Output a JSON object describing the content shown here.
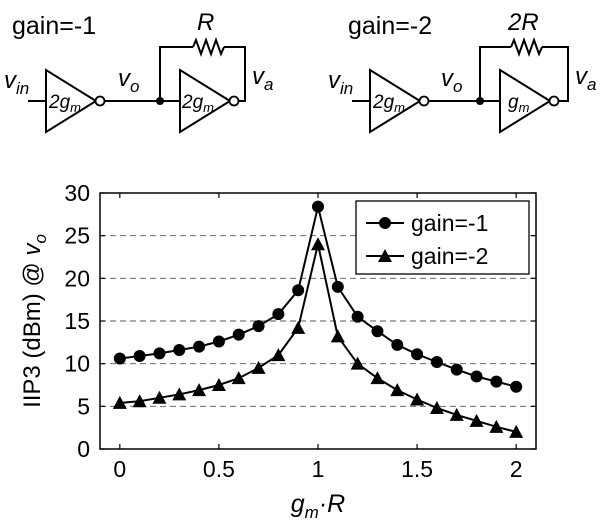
{
  "schematics": {
    "left": {
      "title": "gain=-1",
      "input_label": "v",
      "input_sub": "in",
      "mid_label": "v",
      "mid_sub": "o",
      "out_label": "v",
      "out_sub": "a",
      "feedback_label": "R",
      "amp1_gain": "2g",
      "amp1_sub": "m",
      "amp2_gain": "2g",
      "amp2_sub": "m"
    },
    "right": {
      "title": "gain=-2",
      "input_label": "v",
      "input_sub": "in",
      "mid_label": "v",
      "mid_sub": "o",
      "out_label": "v",
      "out_sub": "a",
      "feedback_label": "2R",
      "amp1_gain": "2g",
      "amp1_sub": "m",
      "amp2_gain": "g",
      "amp2_sub": "m"
    }
  },
  "chart_data": {
    "type": "line",
    "ylabel_prefix": "IIP3 (dBm) @ ",
    "ylabel_var": "v",
    "ylabel_sub": "o",
    "xlabel_var": "g",
    "xlabel_sub": "m",
    "xlabel_suffix": "·R",
    "xlim": [
      -0.1,
      2.1
    ],
    "ylim": [
      0,
      30
    ],
    "xticks": [
      "0",
      "0.5",
      "1",
      "1.5",
      "2"
    ],
    "yticks": [
      "0",
      "5",
      "10",
      "15",
      "20",
      "25",
      "30"
    ],
    "grid": "dashed horizontal",
    "legend_position": "top-right",
    "series": [
      {
        "name": "gain=-1",
        "marker": "circle",
        "x": [
          0,
          0.1,
          0.2,
          0.3,
          0.4,
          0.5,
          0.6,
          0.7,
          0.8,
          0.9,
          1.0,
          1.1,
          1.2,
          1.3,
          1.4,
          1.5,
          1.6,
          1.7,
          1.8,
          1.9,
          2.0
        ],
        "y": [
          10.6,
          10.9,
          11.2,
          11.6,
          12.0,
          12.6,
          13.4,
          14.4,
          15.8,
          18.6,
          28.4,
          19.0,
          15.5,
          13.8,
          12.2,
          11.1,
          10.2,
          9.3,
          8.5,
          7.9,
          7.3
        ]
      },
      {
        "name": "gain=-2",
        "marker": "triangle",
        "x": [
          0,
          0.1,
          0.2,
          0.3,
          0.4,
          0.5,
          0.6,
          0.7,
          0.8,
          0.9,
          1.0,
          1.1,
          1.2,
          1.3,
          1.4,
          1.5,
          1.6,
          1.7,
          1.8,
          1.9,
          2.0
        ],
        "y": [
          5.4,
          5.6,
          6.0,
          6.4,
          6.9,
          7.5,
          8.3,
          9.5,
          11.0,
          14.2,
          24.0,
          13.2,
          10.0,
          8.3,
          6.9,
          5.8,
          4.8,
          4.0,
          3.3,
          2.6,
          2.0
        ]
      }
    ]
  }
}
